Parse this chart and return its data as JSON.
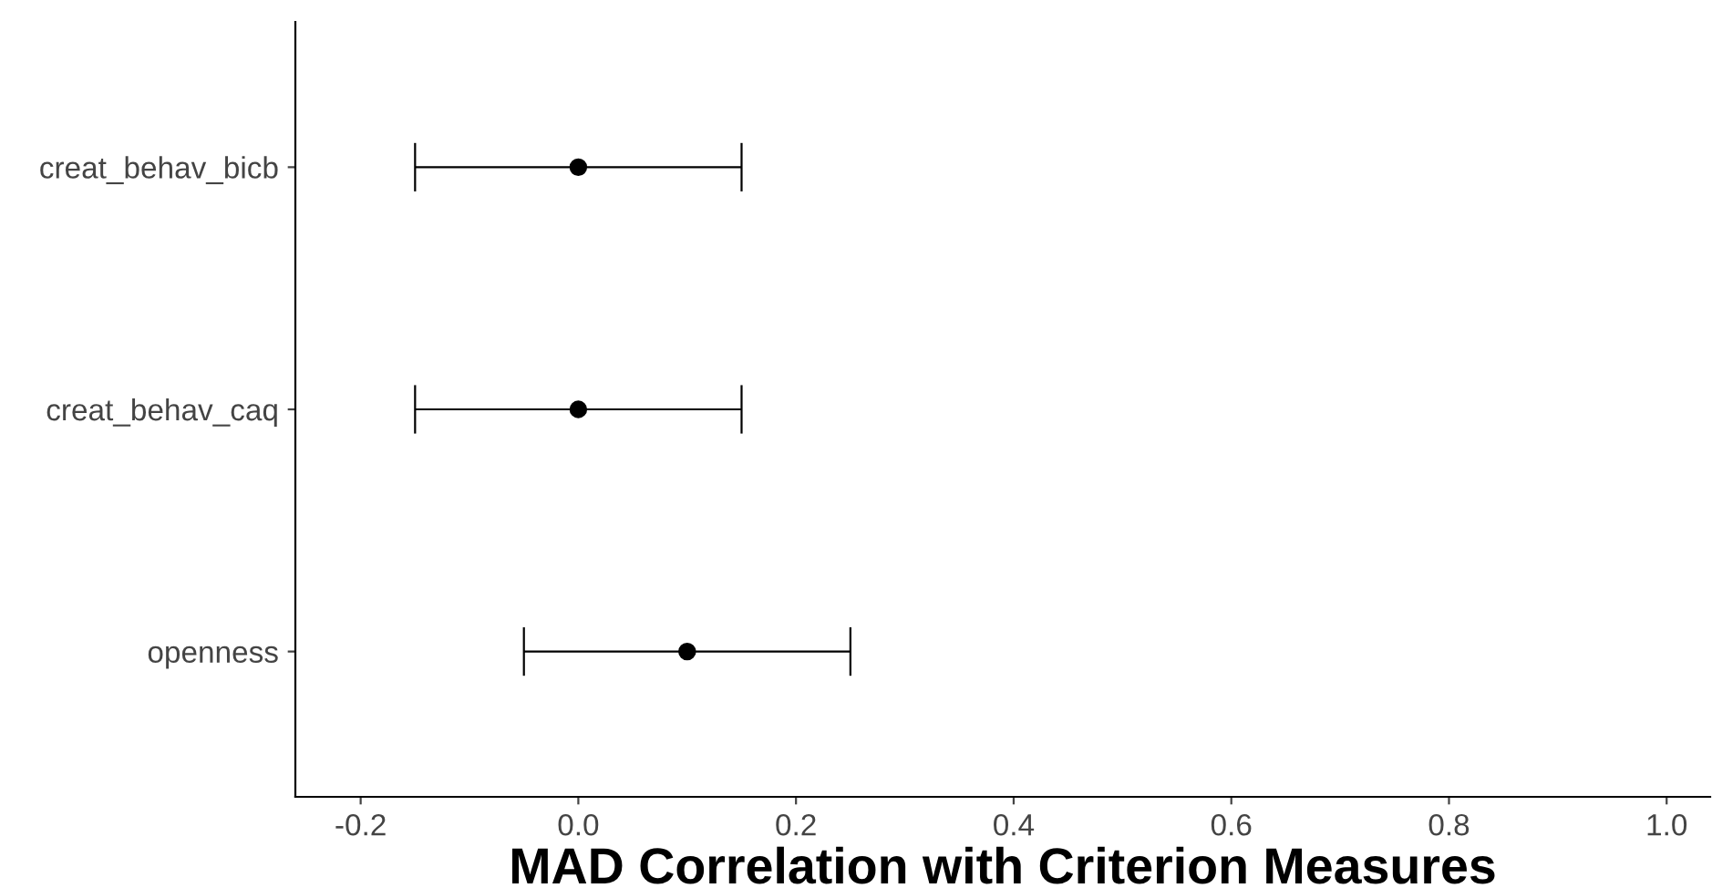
{
  "chart_data": {
    "type": "scatter",
    "orientation": "horizontal",
    "xlabel": "MAD Correlation with Criterion Measures",
    "categories": [
      "creat_behav_bicb",
      "creat_behav_caq",
      "openness"
    ],
    "series": [
      {
        "color": "#000000",
        "values": [
          0.0,
          0.0,
          0.1
        ],
        "errors": [
          [
            -0.15,
            0.15
          ],
          [
            -0.15,
            0.15
          ],
          [
            -0.05,
            0.25
          ]
        ]
      }
    ],
    "xlim": [
      -0.26,
      1.04
    ],
    "xticks": [
      -0.2,
      {
        "value": 0,
        "label": "0.0"
      },
      0.2,
      0.4,
      0.6,
      0.8,
      {
        "value": 1,
        "label": "1.0"
      }
    ],
    "grid": false,
    "legend": false,
    "marker": "circle"
  }
}
